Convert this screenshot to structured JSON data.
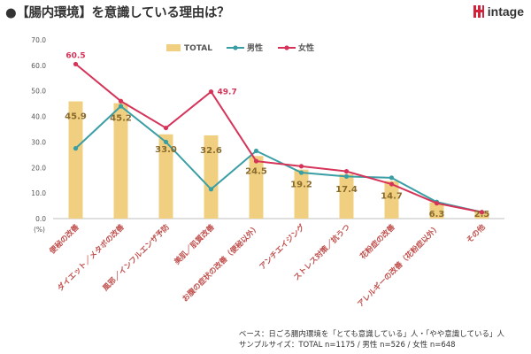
{
  "header": {
    "title": "●【腸内環境】を意識している理由は？",
    "logo_text": "intage"
  },
  "footer": {
    "base": "ベース：日ごろ腸内環境を「とても意識している」人・「やや意識している」人",
    "sample": "サンプルサイズ：TOTAL n=1175 / 男性 n=526 / 女性 n=648"
  },
  "chart_data": {
    "type": "bar",
    "title": "",
    "xlabel": "",
    "ylabel": "(%)",
    "ylim": [
      0,
      70
    ],
    "yticks": [
      "0.0",
      "10.0",
      "20.0",
      "30.0",
      "40.0",
      "50.0",
      "60.0",
      "70.0"
    ],
    "categories": [
      "便秘の改善",
      "ダイエット／メタボの改善",
      "風邪／インフルエンザ予防",
      "美肌／肌質改善",
      "お腹の症状の改善（便秘以外）",
      "アンチエイジング",
      "ストレス対策／抗うつ",
      "花粉症の改善",
      "アレルギーの改善（花粉症以外）",
      "その他"
    ],
    "series": [
      {
        "name": "TOTAL",
        "kind": "bar",
        "color": "#f0d080",
        "values": [
          45.9,
          45.2,
          33.0,
          32.6,
          24.5,
          19.2,
          17.4,
          14.7,
          6.3,
          2.5
        ],
        "labels": [
          "45.9",
          "45.2",
          "33.0",
          "32.6",
          "24.5",
          "19.2",
          "17.4",
          "14.7",
          "6.3",
          "2.5"
        ]
      },
      {
        "name": "男性",
        "kind": "line",
        "color": "#3a9ea5",
        "values": [
          27.5,
          44.0,
          30.0,
          11.5,
          26.5,
          18.0,
          16.5,
          16.0,
          6.5,
          2.5
        ]
      },
      {
        "name": "女性",
        "kind": "line",
        "color": "#d63359",
        "values": [
          60.5,
          46.0,
          35.5,
          49.7,
          22.5,
          20.5,
          18.5,
          13.5,
          6.0,
          2.5
        ],
        "point_labels": {
          "0": "60.5",
          "3": "49.7"
        }
      }
    ],
    "legend": "top",
    "grid": false
  }
}
